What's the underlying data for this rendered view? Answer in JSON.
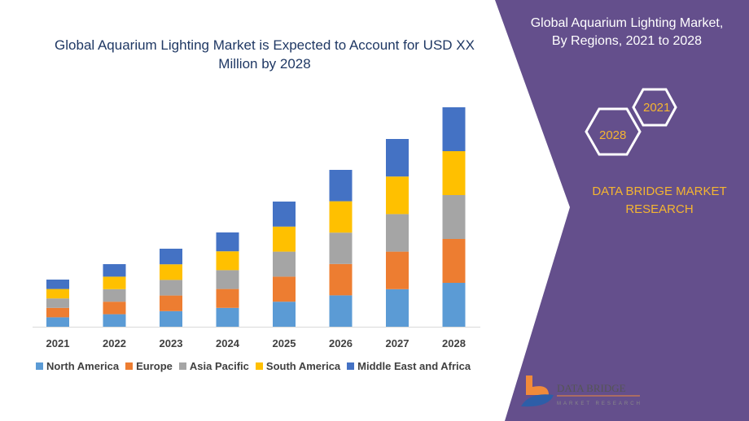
{
  "title": "Global Aquarium Lighting Market is Expected to Account for USD XX Million by 2028",
  "side": {
    "title": "Global Aquarium Lighting Market, By Regions, 2021 to 2028",
    "hex_1": "2021",
    "hex_2": "2028",
    "brand": "DATA BRIDGE MARKET RESEARCH",
    "logo_text": "DATA BRIDGE MARKET RESEARCH"
  },
  "colors": {
    "panel": "#644f8c",
    "accent": "#f5b531"
  },
  "chart_data": {
    "type": "bar",
    "stacked": true,
    "grid": false,
    "legend": "bottom",
    "categories": [
      "2021",
      "2022",
      "2023",
      "2024",
      "2025",
      "2026",
      "2027",
      "2028"
    ],
    "series": [
      {
        "name": "North America",
        "color": "#5b9bd5",
        "values": [
          11.6,
          15.4,
          19.2,
          23.2,
          30.8,
          38.6,
          46.2,
          54
        ]
      },
      {
        "name": "Europe",
        "color": "#ed7d31",
        "values": [
          11.6,
          15.4,
          19.2,
          23.2,
          30.8,
          38.6,
          46.2,
          54
        ]
      },
      {
        "name": "Asia Pacific",
        "color": "#a5a5a5",
        "values": [
          11.6,
          15.4,
          19.2,
          23.2,
          30.8,
          38.6,
          46.2,
          54
        ]
      },
      {
        "name": "South America",
        "color": "#ffc000",
        "values": [
          11.6,
          15.4,
          19.2,
          23.2,
          30.8,
          38.6,
          46.2,
          54
        ]
      },
      {
        "name": "Middle East and Africa",
        "color": "#4472c4",
        "values": [
          11.6,
          15.4,
          19.2,
          23.2,
          30.8,
          38.6,
          46.2,
          54
        ]
      }
    ]
  }
}
